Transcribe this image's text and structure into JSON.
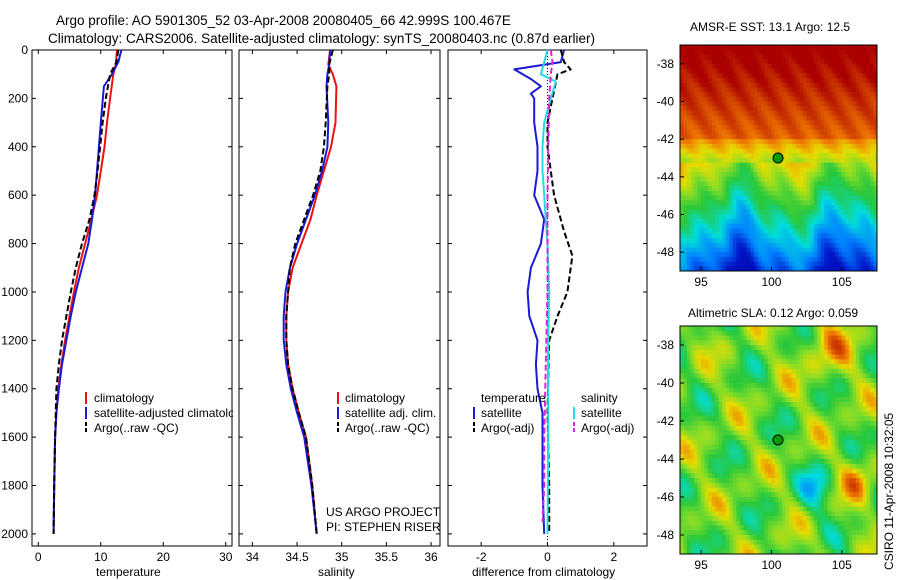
{
  "header": {
    "line1": "Argo profile: AO 5901305_52 03-Apr-2008 20080405_66 42.999S 100.467E",
    "line2": "Climatology: CARS2006. Satellite-adjusted climatology: synTS_20080403.nc (0.87d earlier)"
  },
  "footer_note": {
    "project": "US ARGO PROJECT",
    "pi": "PI: STEPHEN RISER",
    "stamp": "CSIRO 11-Apr-2008 10:32:05"
  },
  "colors": {
    "climatology": "#ee1111",
    "satellite": "#1a1ad6",
    "argo": "#000000",
    "satellite_salinity": "#22dddd",
    "argo_salinity": "#dd22dd",
    "marker": "#009900"
  },
  "chart_data": [
    {
      "type": "line",
      "id": "temperature",
      "xlabel": "temperature",
      "xlim": [
        -1,
        31
      ],
      "ylim": [
        0,
        2050
      ],
      "y_reversed": true,
      "x_ticks": [
        "0",
        "10",
        "20",
        "30"
      ],
      "y_ticks": [
        "0",
        "200",
        "400",
        "600",
        "800",
        "1000",
        "1200",
        "1400",
        "1600",
        "1800",
        "2000"
      ],
      "legend": [
        "climatology",
        "satellite-adjusted climatology",
        "Argo(..raw -QC)"
      ],
      "series": [
        {
          "name": "climatology",
          "color": "#ee1111",
          "style": "solid",
          "x": [
            12.6,
            12.4,
            12.0,
            11.5,
            11.0,
            10.6,
            10.0,
            9.4,
            8.5,
            7.5,
            6.5,
            5.7,
            5.0,
            4.3,
            3.7,
            3.2,
            2.9,
            2.7,
            2.55,
            2.45
          ],
          "y": [
            0,
            60,
            100,
            200,
            300,
            400,
            500,
            600,
            700,
            800,
            900,
            1000,
            1100,
            1200,
            1300,
            1400,
            1500,
            1600,
            1800,
            2000
          ]
        },
        {
          "name": "satellite-adjusted climatology",
          "color": "#1a1ad6",
          "style": "solid",
          "x": [
            13.3,
            12.8,
            11.8,
            10.5,
            10.0,
            9.7,
            9.4,
            9.1,
            8.6,
            8.0,
            7.0,
            6.0,
            5.2,
            4.5,
            3.8,
            3.3,
            2.9,
            2.7,
            2.55,
            2.45
          ],
          "y": [
            0,
            50,
            100,
            150,
            300,
            400,
            500,
            600,
            700,
            800,
            900,
            1000,
            1100,
            1200,
            1300,
            1400,
            1500,
            1600,
            1800,
            2000
          ]
        },
        {
          "name": "Argo(..raw -QC)",
          "color": "#000000",
          "style": "dashed",
          "x": [
            12.8,
            12.5,
            11.5,
            10.8,
            10.3,
            9.9,
            9.5,
            9.0,
            8.2,
            7.0,
            6.0,
            5.2,
            4.5,
            3.8,
            3.3,
            2.9,
            2.7,
            2.55,
            2.45
          ],
          "y": [
            0,
            50,
            100,
            200,
            300,
            400,
            500,
            600,
            700,
            800,
            900,
            1000,
            1100,
            1200,
            1300,
            1400,
            1600,
            1800,
            2000
          ]
        }
      ]
    },
    {
      "type": "line",
      "id": "salinity",
      "xlabel": "salinity",
      "xlim": [
        33.85,
        36.1
      ],
      "ylim": [
        0,
        2050
      ],
      "y_reversed": true,
      "x_ticks": [
        "34",
        "34.5",
        "35",
        "35.5",
        "36"
      ],
      "legend": [
        "climatology",
        "satellite adj. clim.",
        "Argo(..raw -QC)"
      ],
      "series": [
        {
          "name": "climatology",
          "color": "#ee1111",
          "style": "solid",
          "x": [
            34.87,
            34.85,
            34.9,
            34.94,
            34.93,
            34.88,
            34.8,
            34.72,
            34.65,
            34.55,
            34.45,
            34.4,
            34.38,
            34.38,
            34.4,
            34.45,
            34.52,
            34.6,
            34.67,
            34.72
          ],
          "y": [
            0,
            60,
            100,
            150,
            300,
            400,
            500,
            600,
            700,
            800,
            900,
            1000,
            1100,
            1200,
            1300,
            1400,
            1500,
            1600,
            1800,
            2000
          ]
        },
        {
          "name": "satellite adj. clim.",
          "color": "#1a1ad6",
          "style": "solid",
          "x": [
            34.87,
            34.86,
            34.84,
            34.83,
            34.85,
            34.84,
            34.78,
            34.7,
            34.6,
            34.5,
            34.42,
            34.37,
            34.35,
            34.35,
            34.38,
            34.43,
            34.5,
            34.58,
            34.66,
            34.72
          ],
          "y": [
            0,
            60,
            100,
            150,
            300,
            400,
            500,
            600,
            700,
            800,
            900,
            1000,
            1100,
            1200,
            1300,
            1400,
            1500,
            1600,
            1800,
            2000
          ]
        },
        {
          "name": "Argo(..raw -QC)",
          "color": "#000000",
          "style": "dashed",
          "x": [
            34.9,
            34.86,
            34.86,
            34.84,
            34.82,
            34.8,
            34.76,
            34.68,
            34.58,
            34.48,
            34.42,
            34.4,
            34.38,
            34.38,
            34.4,
            34.45,
            34.52,
            34.6,
            34.67,
            34.72
          ],
          "y": [
            0,
            60,
            100,
            150,
            300,
            400,
            500,
            600,
            700,
            800,
            900,
            1000,
            1100,
            1200,
            1300,
            1400,
            1500,
            1600,
            1800,
            2000
          ]
        }
      ]
    },
    {
      "type": "line",
      "id": "difference",
      "xlabel": "difference from climatology",
      "xlim": [
        -3.0,
        3.0
      ],
      "ylim": [
        0,
        2050
      ],
      "y_reversed": true,
      "x_ticks": [
        "-2",
        "0",
        "2"
      ],
      "zero_line": "dotted",
      "legend_groups": [
        {
          "title": "temperature",
          "entries": [
            "satellite",
            "Argo(-adj)"
          ]
        },
        {
          "title": "salinity",
          "entries": [
            "satellite",
            "Argo(-adj)"
          ]
        }
      ],
      "series": [
        {
          "name": "satellite (temperature)",
          "color": "#1a1ad6",
          "style": "solid",
          "x": [
            0.5,
            0.4,
            -1.0,
            -0.5,
            -0.2,
            -0.5,
            -0.4,
            -0.4,
            -0.3,
            -0.3,
            -0.4,
            -0.1,
            -0.2,
            -0.35,
            -0.5,
            -0.6,
            -0.55,
            -0.3,
            -0.35,
            -0.3,
            -0.15,
            -0.15,
            -0.1
          ],
          "y": [
            0,
            50,
            80,
            120,
            150,
            180,
            200,
            300,
            400,
            500,
            600,
            700,
            800,
            850,
            900,
            1000,
            1100,
            1200,
            1300,
            1400,
            1500,
            1800,
            2000
          ]
        },
        {
          "name": "Argo(-adj) (temperature)",
          "color": "#000000",
          "style": "dashed",
          "x": [
            0.4,
            0.5,
            0.7,
            0.3,
            0.15,
            0.0,
            0.0,
            0.2,
            0.5,
            0.75,
            0.6,
            0.3,
            0.05,
            0.0,
            0.05,
            0.05
          ],
          "y": [
            0,
            50,
            80,
            100,
            200,
            300,
            400,
            600,
            750,
            850,
            1000,
            1100,
            1200,
            1500,
            1800,
            2000
          ]
        },
        {
          "name": "satellite (salinity)",
          "color": "#22dddd",
          "style": "solid",
          "x": [
            0.0,
            -0.1,
            -0.2,
            0.25,
            0.1,
            -0.1,
            -0.15,
            -0.15,
            -0.1,
            -0.05,
            0.0,
            0.05,
            0.02,
            0.02,
            0.0
          ],
          "y": [
            0,
            50,
            100,
            130,
            200,
            300,
            400,
            500,
            600,
            700,
            800,
            1000,
            1200,
            1600,
            2000
          ]
        },
        {
          "name": "Argo(-adj) (salinity)",
          "color": "#dd22dd",
          "style": "dashed",
          "x": [
            0.1,
            0.15,
            0.1,
            0.05,
            0.0,
            0.0,
            -0.05,
            -0.1,
            -0.1,
            -0.15
          ],
          "y": [
            0,
            50,
            100,
            200,
            600,
            1000,
            1300,
            1600,
            1800,
            1950
          ]
        }
      ]
    },
    {
      "type": "heatmap",
      "id": "sst_map",
      "title": "AMSR-E SST: 13.1 Argo: 12.5",
      "xlim": [
        93.5,
        107.5
      ],
      "ylim": [
        -49,
        -37
      ],
      "x_ticks": [
        "95",
        "100",
        "105"
      ],
      "y_ticks": [
        "-38",
        "-40",
        "-42",
        "-44",
        "-46",
        "-48"
      ],
      "marker": {
        "lon": 100.467,
        "lat": -42.999
      }
    },
    {
      "type": "heatmap",
      "id": "sla_map",
      "title": "Altimetric SLA: 0.12 Argo: 0.059",
      "xlim": [
        93.5,
        107.5
      ],
      "ylim": [
        -49,
        -37
      ],
      "x_ticks": [
        "95",
        "100",
        "105"
      ],
      "y_ticks": [
        "-38",
        "-40",
        "-42",
        "-44",
        "-46",
        "-48"
      ],
      "marker": {
        "lon": 100.467,
        "lat": -42.999
      }
    }
  ]
}
